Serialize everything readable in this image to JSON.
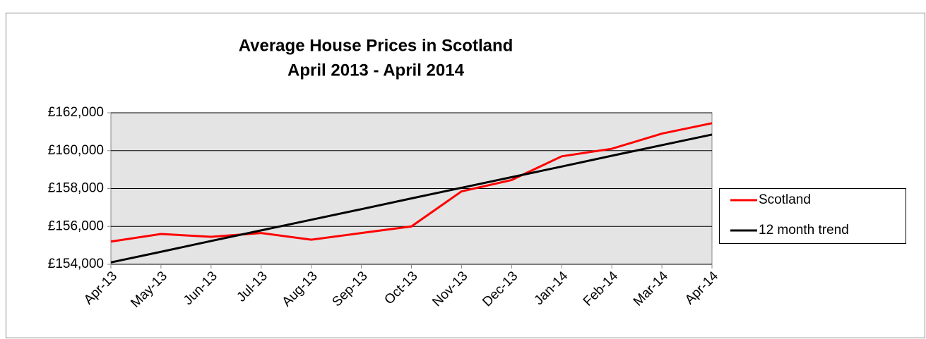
{
  "chart_data": {
    "type": "line",
    "title": "Average House Prices in Scotland",
    "subtitle": "April 2013 - April 2014",
    "categories": [
      "Apr-13",
      "May-13",
      "Jun-13",
      "Jul-13",
      "Aug-13",
      "Sep-13",
      "Oct-13",
      "Nov-13",
      "Dec-13",
      "Jan-14",
      "Feb-14",
      "Mar-14",
      "Apr-14"
    ],
    "series": [
      {
        "name": "Scotland",
        "color": "#ff0000",
        "values": [
          155200,
          155600,
          155450,
          155650,
          155300,
          155650,
          156000,
          157850,
          158450,
          159700,
          160100,
          160900,
          161450
        ]
      },
      {
        "name": "12 month trend",
        "color": "#000000",
        "values": [
          154100,
          154660,
          155230,
          155790,
          156350,
          156910,
          157480,
          158040,
          158600,
          159160,
          159730,
          160290,
          160850
        ]
      }
    ],
    "ylim": [
      154000,
      162000
    ],
    "yticks": [
      {
        "value": 154000,
        "label": "£154,000"
      },
      {
        "value": 156000,
        "label": "£156,000"
      },
      {
        "value": 158000,
        "label": "£158,000"
      },
      {
        "value": 160000,
        "label": "£160,000"
      },
      {
        "value": 162000,
        "label": "£162,000"
      }
    ],
    "grid": true,
    "legend": "right",
    "plot_background": "#e4e4e4"
  }
}
